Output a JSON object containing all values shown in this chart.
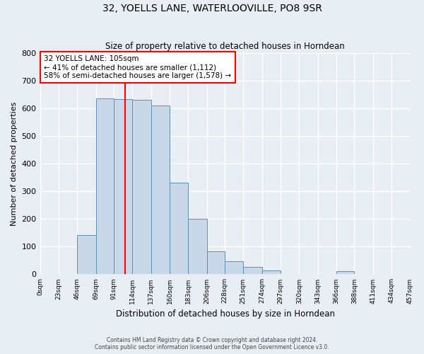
{
  "title": "32, YOELLS LANE, WATERLOOVILLE, PO8 9SR",
  "subtitle": "Size of property relative to detached houses in Horndean",
  "xlabel": "Distribution of detached houses by size in Horndean",
  "ylabel": "Number of detached properties",
  "footnote1": "Contains HM Land Registry data © Crown copyright and database right 2024.",
  "footnote2": "Contains public sector information licensed under the Open Government Licence v3.0.",
  "bin_edges": [
    0,
    23,
    46,
    69,
    91,
    114,
    137,
    160,
    183,
    206,
    228,
    251,
    274,
    297,
    320,
    343,
    366,
    388,
    411,
    434,
    457
  ],
  "bin_counts": [
    2,
    0,
    143,
    635,
    632,
    630,
    609,
    332,
    201,
    84,
    46,
    27,
    13,
    0,
    0,
    0,
    11,
    0,
    0,
    2
  ],
  "bar_color": "#c8d8e8",
  "bar_edge_color": "#6090b0",
  "vline_x": 105,
  "vline_color": "red",
  "annotation_line1": "32 YOELLS LANE: 105sqm",
  "annotation_line2": "← 41% of detached houses are smaller (1,112)",
  "annotation_line3": "58% of semi-detached houses are larger (1,578) →",
  "annotation_box_color": "white",
  "annotation_box_edge_color": "red",
  "ylim": [
    0,
    800
  ],
  "yticks": [
    0,
    100,
    200,
    300,
    400,
    500,
    600,
    700,
    800
  ],
  "xlim": [
    0,
    457
  ],
  "background_color": "#e8eef4",
  "grid_color": "white",
  "title_fontsize": 10,
  "subtitle_fontsize": 8.5,
  "xlabel_fontsize": 8.5,
  "ylabel_fontsize": 8,
  "footnote_fontsize": 5.5,
  "xtick_fontsize": 6.5,
  "ytick_fontsize": 8
}
